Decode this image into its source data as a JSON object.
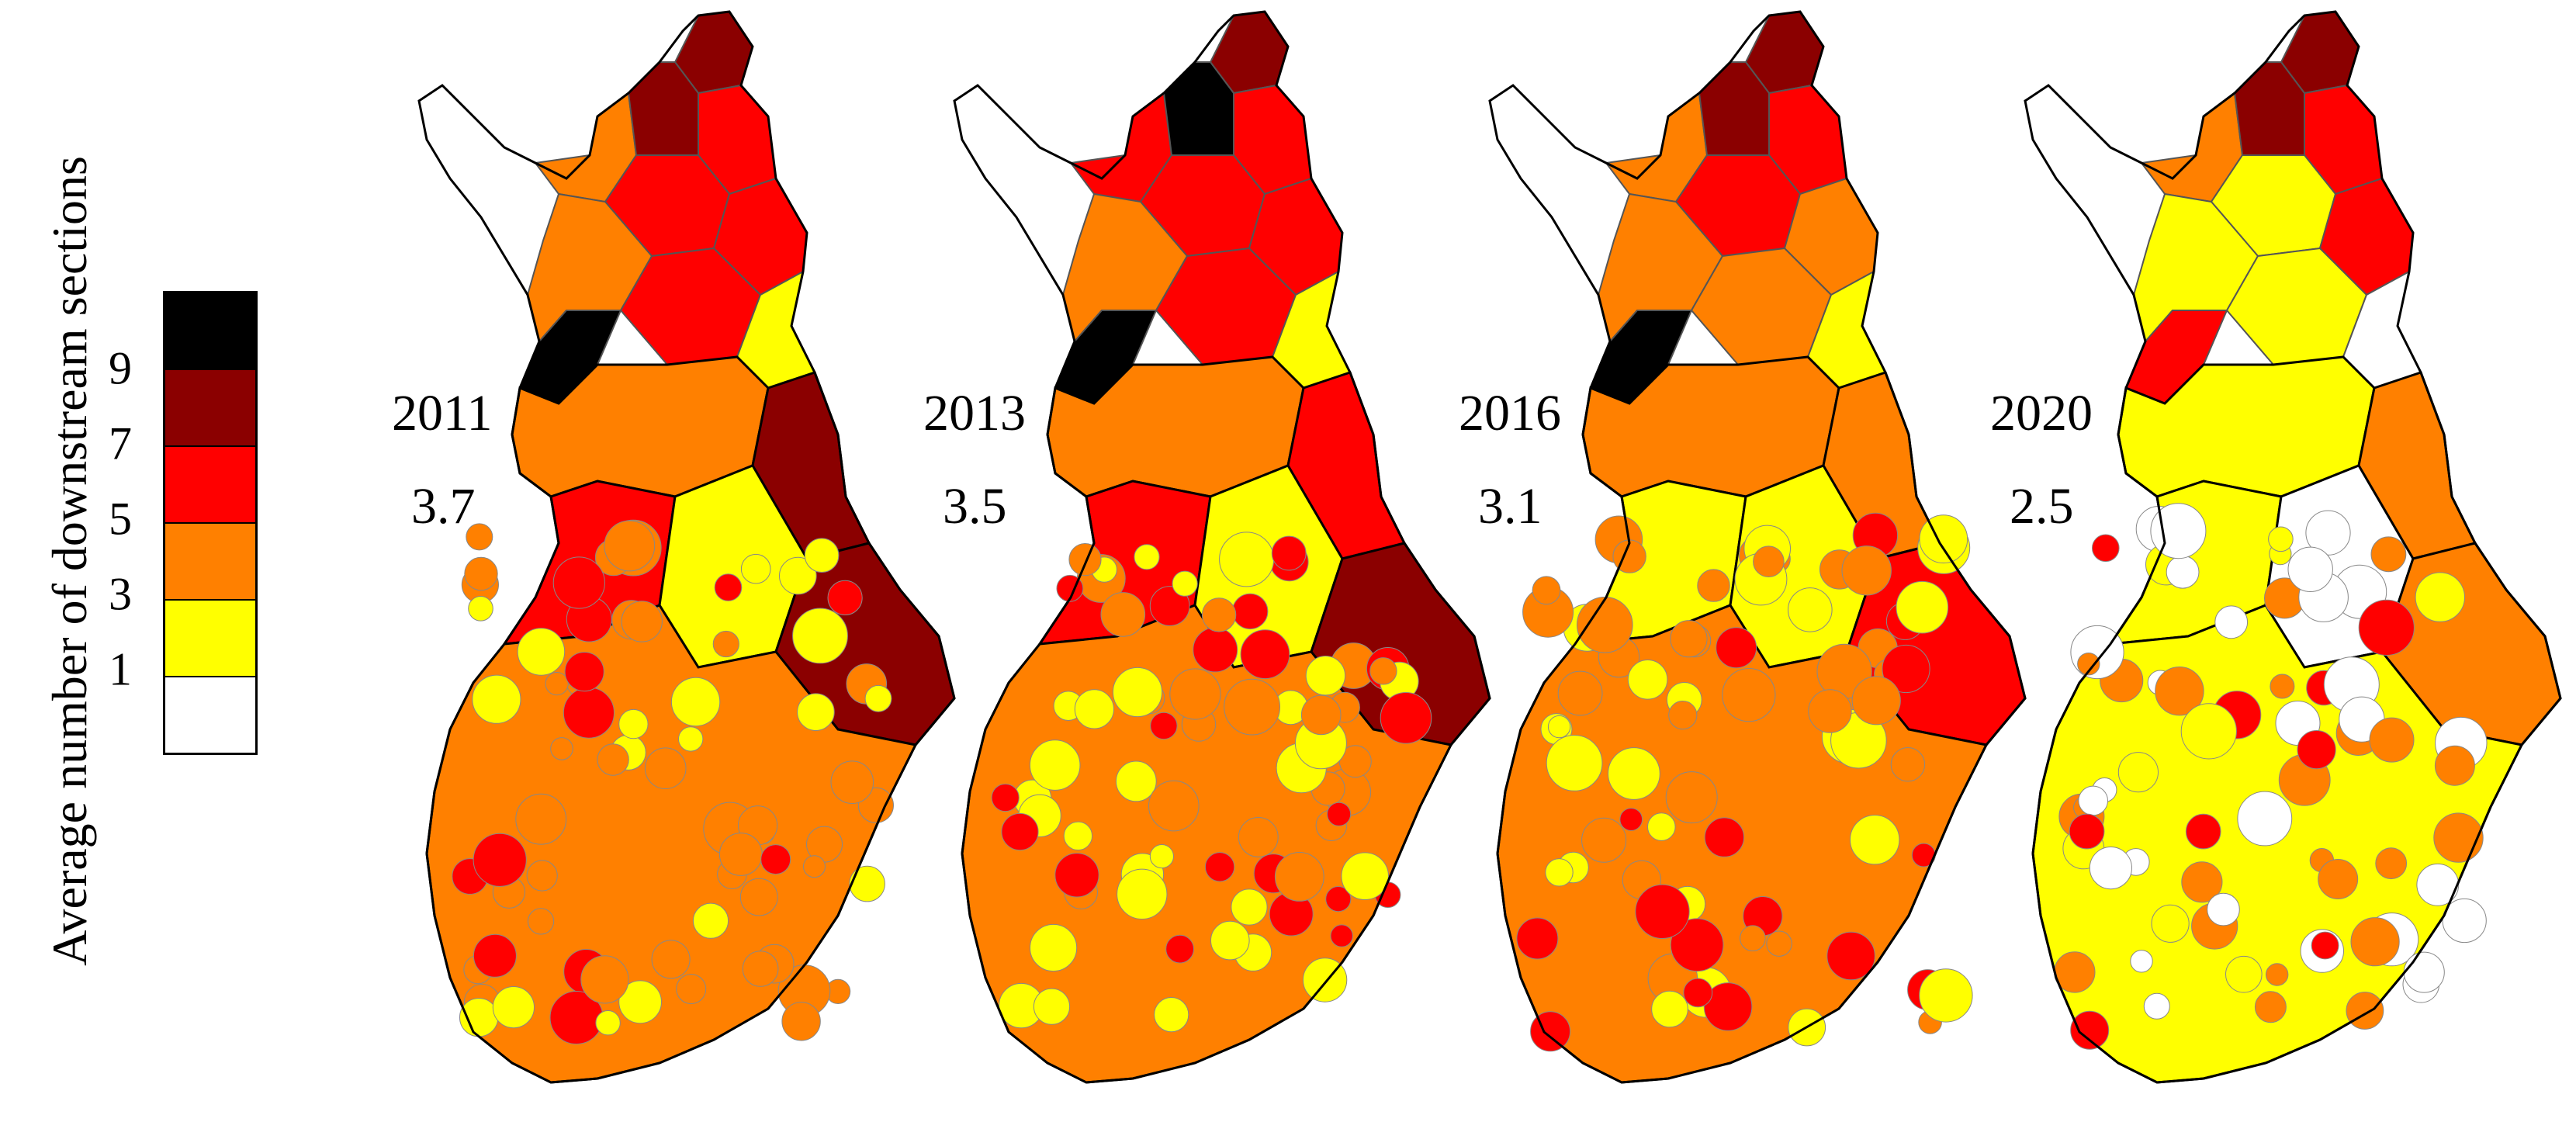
{
  "legend": {
    "title": "Average number of downstream sections",
    "tick_labels": [
      "9",
      "7",
      "5",
      "3",
      "1"
    ],
    "bins": [
      {
        "range": "9+",
        "color": "#000000"
      },
      {
        "range": "7-9",
        "color": "#8b0000"
      },
      {
        "range": "5-7",
        "color": "#ff0000"
      },
      {
        "range": "3-5",
        "color": "#ff8000"
      },
      {
        "range": "1-3",
        "color": "#ffff00"
      },
      {
        "range": "0-1",
        "color": "#ffffff"
      }
    ]
  },
  "panels": [
    {
      "year": "2011",
      "average": "3.7",
      "north": [
        "#8b0000",
        "#ff0000",
        "#ff8000",
        "#ff0000",
        "#ff0000",
        "#8b0000",
        "#ff8000",
        "#ff0000",
        "#ffff00",
        "#000000"
      ],
      "south": [
        "#ff8000",
        "#8b0000",
        "#ff0000",
        "#ffff00",
        "#8b0000",
        "#ff8000"
      ]
    },
    {
      "year": "2013",
      "average": "3.5",
      "north": [
        "#8b0000",
        "#ff0000",
        "#ff0000",
        "#ff0000",
        "#ff0000",
        "#000000",
        "#ff8000",
        "#ff0000",
        "#ffff00",
        "#000000"
      ],
      "south": [
        "#ff8000",
        "#ff0000",
        "#ff0000",
        "#ffff00",
        "#8b0000",
        "#ff8000"
      ]
    },
    {
      "year": "2016",
      "average": "3.1",
      "north": [
        "#8b0000",
        "#ff0000",
        "#ff8000",
        "#ff0000",
        "#ff8000",
        "#8b0000",
        "#ff8000",
        "#ff8000",
        "#ffff00",
        "#000000"
      ],
      "south": [
        "#ff8000",
        "#ff8000",
        "#ffff00",
        "#ffff00",
        "#ff0000",
        "#ff8000"
      ]
    },
    {
      "year": "2020",
      "average": "2.5",
      "north": [
        "#8b0000",
        "#ff0000",
        "#ff8000",
        "#ffff00",
        "#ff0000",
        "#8b0000",
        "#ffff00",
        "#ffff00",
        "#ffffff",
        "#ff0000"
      ],
      "south": [
        "#ffff00",
        "#ff8000",
        "#ffff00",
        "#ffffff",
        "#ff8000",
        "#ffff00"
      ]
    }
  ]
}
